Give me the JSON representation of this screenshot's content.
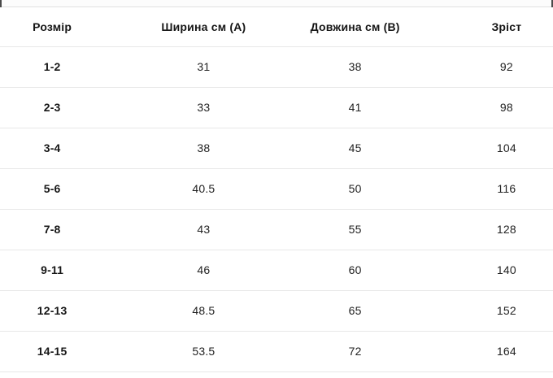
{
  "table": {
    "headers": [
      "Розмір",
      "Ширина см (А)",
      "Довжина см (В)",
      "Зріст"
    ],
    "rows": [
      {
        "size": "1-2",
        "width_cm": "31",
        "length_cm": "38",
        "height_cm": "92"
      },
      {
        "size": "2-3",
        "width_cm": "33",
        "length_cm": "41",
        "height_cm": "98"
      },
      {
        "size": "3-4",
        "width_cm": "38",
        "length_cm": "45",
        "height_cm": "104"
      },
      {
        "size": "5-6",
        "width_cm": "40.5",
        "length_cm": "50",
        "height_cm": "116"
      },
      {
        "size": "7-8",
        "width_cm": "43",
        "length_cm": "55",
        "height_cm": "128"
      },
      {
        "size": "9-11",
        "width_cm": "46",
        "length_cm": "60",
        "height_cm": "140"
      },
      {
        "size": "12-13",
        "width_cm": "48.5",
        "length_cm": "65",
        "height_cm": "152"
      },
      {
        "size": "14-15",
        "width_cm": "53.5",
        "length_cm": "72",
        "height_cm": "164"
      }
    ]
  },
  "colors": {
    "text": "#1a1a1a",
    "row_separator": "#e8e8e8",
    "top_strip_bg": "#fcfcfc",
    "top_strip_border": "#e0e0e0",
    "edge_tick": "#4a4a4a",
    "background": "#ffffff"
  }
}
